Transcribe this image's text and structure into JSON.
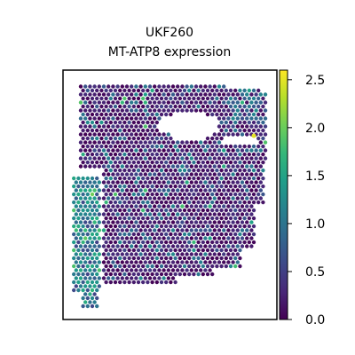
{
  "chart_data": {
    "type": "scatter",
    "title": "UKF260",
    "subtitle": "MT-ATP8 expression",
    "xlabel": "",
    "ylabel": "",
    "colorbar": {
      "colormap": "viridis",
      "range": [
        0.0,
        2.6
      ],
      "ticks": [
        "0.0",
        "0.5",
        "1.0",
        "1.5",
        "2.0",
        "2.5"
      ],
      "colors": [
        "#440154",
        "#482878",
        "#3e4989",
        "#31688e",
        "#26828e",
        "#1f9e89",
        "#35b779",
        "#6ece58",
        "#b5de2b",
        "#fde725"
      ]
    },
    "frame_color": "#000000",
    "spot_summary": {
      "tissue_median": 0.35,
      "left_strip_median": 0.9,
      "max_value": 2.5
    }
  }
}
